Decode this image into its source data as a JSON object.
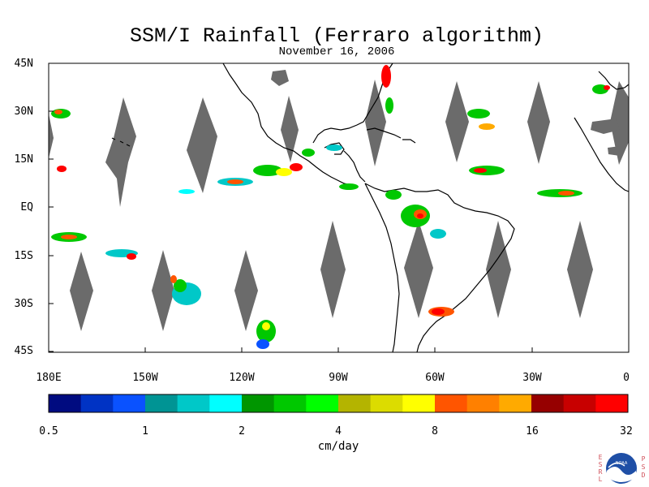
{
  "title": "SSM/I Rainfall (Ferraro algorithm)",
  "subtitle": "November 16, 2006",
  "map": {
    "lat_labels": [
      "45N",
      "30N",
      "15N",
      "EQ",
      "15S",
      "30S",
      "45S"
    ],
    "lon_labels": [
      "180E",
      "150W",
      "120W",
      "90W",
      "60W",
      "30W",
      "0"
    ],
    "land_outline_color": "#000000",
    "no_data_color": "#6b6b6b"
  },
  "colorbar": {
    "unit_label": "cm/day",
    "tick_labels": [
      "0.5",
      "1",
      "2",
      "4",
      "8",
      "16",
      "32"
    ],
    "colors": [
      "#000b80",
      "#0033c4",
      "#0a52ff",
      "#009494",
      "#00c8c8",
      "#00ffff",
      "#009600",
      "#00c800",
      "#00ff00",
      "#b4b400",
      "#dcdc00",
      "#ffff00",
      "#ff5500",
      "#ff8000",
      "#ffaa00",
      "#960000",
      "#c80000",
      "#ff0000"
    ]
  },
  "logo": {
    "left_letters": [
      "E",
      "S",
      "R",
      "L"
    ],
    "right_letters": [
      "P",
      "S",
      "D"
    ],
    "center_text": "NOAA",
    "colors": {
      "letters": "#d0505a",
      "disc": "#1f4fa6"
    }
  }
}
